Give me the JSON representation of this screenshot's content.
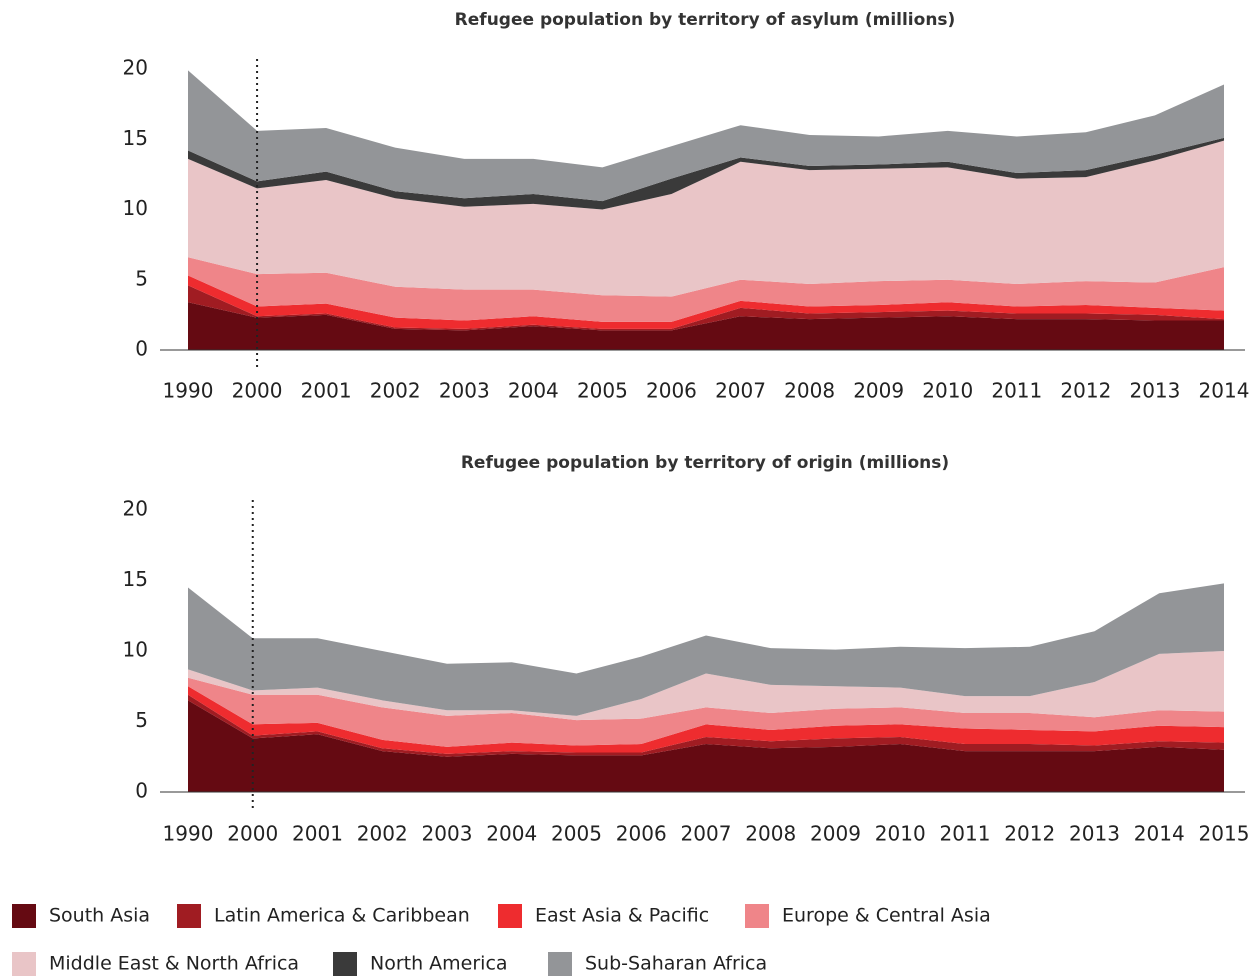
{
  "chart_data": [
    {
      "type": "stacked-area",
      "title": "Refugee population by territory of asylum (millions)",
      "categories": [
        "1990",
        "2000",
        "2001",
        "2002",
        "2003",
        "2004",
        "2005",
        "2006",
        "2007",
        "2008",
        "2009",
        "2010",
        "2011",
        "2012",
        "2013",
        "2014"
      ],
      "ylim": [
        0,
        20
      ],
      "yticks": [
        0,
        5,
        10,
        15,
        20
      ],
      "series": [
        {
          "name": "South Asia",
          "color": "#650a12",
          "values": [
            3.4,
            2.3,
            2.5,
            1.5,
            1.4,
            1.7,
            1.4,
            1.4,
            2.4,
            2.2,
            2.3,
            2.4,
            2.2,
            2.2,
            2.1,
            2.1
          ]
        },
        {
          "name": "Latin America & Caribbean",
          "color": "#a01c22",
          "values": [
            1.2,
            0.1,
            0.1,
            0.1,
            0.1,
            0.1,
            0.1,
            0.1,
            0.6,
            0.4,
            0.4,
            0.4,
            0.4,
            0.4,
            0.4,
            0.1
          ]
        },
        {
          "name": "East Asia & Pacific",
          "color": "#ee2c2f",
          "values": [
            0.7,
            0.7,
            0.7,
            0.7,
            0.6,
            0.6,
            0.5,
            0.5,
            0.5,
            0.5,
            0.5,
            0.6,
            0.5,
            0.6,
            0.5,
            0.6
          ]
        },
        {
          "name": "Europe & Central Asia",
          "color": "#ef8589",
          "values": [
            1.3,
            2.3,
            2.2,
            2.2,
            2.2,
            1.9,
            1.9,
            1.8,
            1.5,
            1.6,
            1.7,
            1.6,
            1.6,
            1.7,
            1.8,
            3.1
          ]
        },
        {
          "name": "Middle East & North Africa",
          "color": "#e9c5c7",
          "values": [
            7.0,
            6.1,
            6.6,
            6.3,
            5.9,
            6.1,
            6.1,
            7.3,
            8.4,
            8.1,
            8.0,
            8.0,
            7.5,
            7.4,
            8.7,
            9.0
          ]
        },
        {
          "name": "North America",
          "color": "#3a3a3a",
          "values": [
            0.6,
            0.5,
            0.6,
            0.5,
            0.6,
            0.7,
            0.6,
            1.1,
            0.3,
            0.3,
            0.3,
            0.4,
            0.4,
            0.5,
            0.4,
            0.2
          ]
        },
        {
          "name": "Sub-Saharan Africa",
          "color": "#939598",
          "values": [
            5.7,
            3.6,
            3.1,
            3.1,
            2.8,
            2.5,
            2.4,
            2.3,
            2.3,
            2.2,
            2.0,
            2.2,
            2.6,
            2.7,
            2.8,
            3.8
          ]
        }
      ]
    },
    {
      "type": "stacked-area",
      "title": "Refugee population by territory of origin (millions)",
      "categories": [
        "1990",
        "2000",
        "2001",
        "2002",
        "2003",
        "2004",
        "2005",
        "2006",
        "2007",
        "2008",
        "2009",
        "2010",
        "2011",
        "2012",
        "2013",
        "2014",
        "2015"
      ],
      "ylim": [
        0,
        20
      ],
      "yticks": [
        0,
        5,
        10,
        15,
        20
      ],
      "series": [
        {
          "color": "#650a12",
          "values": [
            6.5,
            3.8,
            4.1,
            2.9,
            2.5,
            2.7,
            2.6,
            2.6,
            3.4,
            3.1,
            3.2,
            3.4,
            2.9,
            2.9,
            2.9,
            3.2,
            3.0
          ]
        },
        {
          "color": "#a01c22",
          "values": [
            0.4,
            0.2,
            0.2,
            0.2,
            0.2,
            0.2,
            0.2,
            0.2,
            0.5,
            0.5,
            0.6,
            0.5,
            0.5,
            0.5,
            0.4,
            0.4,
            0.5
          ]
        },
        {
          "color": "#ee2c2f",
          "values": [
            0.6,
            0.8,
            0.6,
            0.6,
            0.5,
            0.6,
            0.5,
            0.6,
            0.9,
            0.8,
            0.9,
            0.9,
            1.1,
            1.0,
            1.0,
            1.1,
            1.1
          ]
        },
        {
          "color": "#ef8589",
          "values": [
            0.6,
            2.1,
            2.0,
            2.3,
            2.2,
            2.1,
            1.8,
            1.8,
            1.2,
            1.2,
            1.2,
            1.2,
            1.1,
            1.2,
            1.0,
            1.1,
            1.1
          ]
        },
        {
          "color": "#e9c5c7",
          "values": [
            0.6,
            0.3,
            0.5,
            0.5,
            0.4,
            0.2,
            0.3,
            1.4,
            2.4,
            2.0,
            1.6,
            1.4,
            1.2,
            1.2,
            2.5,
            4.0,
            4.3
          ]
        },
        {
          "color": "#3a3a3a",
          "values": [
            0,
            0,
            0,
            0,
            0,
            0,
            0,
            0,
            0,
            0,
            0,
            0,
            0,
            0,
            0,
            0,
            0
          ]
        },
        {
          "color": "#939598",
          "values": [
            5.8,
            3.7,
            3.5,
            3.5,
            3.3,
            3.4,
            3.0,
            3.0,
            2.7,
            2.6,
            2.6,
            2.9,
            3.4,
            3.5,
            3.6,
            4.3,
            4.8
          ]
        }
      ]
    }
  ]
}
